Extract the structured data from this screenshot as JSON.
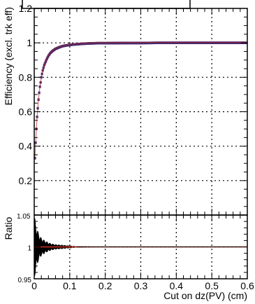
{
  "chart_data": [
    {
      "type": "scatter",
      "panel": "main",
      "ylabel": "Efficiency (excl. trk eff)",
      "xlim": [
        0,
        0.6
      ],
      "ylim": [
        0,
        1.2
      ],
      "grid": true,
      "x_tick_labels": [],
      "y_ticks": [
        0.2,
        0.4,
        0.6,
        0.8,
        1.0,
        1.2
      ],
      "y_tick_labels": [
        "0.2",
        "0.4",
        "0.6",
        "0.8",
        "1",
        "1.2"
      ],
      "series": [
        {
          "color": "#4a2a6e",
          "x": [
            0.002,
            0.004,
            0.006,
            0.008,
            0.01,
            0.012,
            0.014,
            0.016,
            0.018,
            0.02,
            0.022,
            0.024,
            0.026,
            0.028,
            0.03,
            0.035,
            0.04,
            0.045,
            0.05,
            0.055,
            0.06,
            0.07,
            0.08,
            0.09,
            0.1,
            0.12,
            0.14,
            0.16,
            0.18,
            0.2,
            0.25,
            0.3,
            0.35,
            0.4,
            0.45,
            0.5,
            0.55,
            0.6
          ],
          "y": [
            0.33,
            0.42,
            0.5,
            0.57,
            0.62,
            0.67,
            0.71,
            0.745,
            0.77,
            0.8,
            0.82,
            0.84,
            0.855,
            0.87,
            0.88,
            0.905,
            0.925,
            0.94,
            0.95,
            0.958,
            0.965,
            0.974,
            0.981,
            0.985,
            0.988,
            0.992,
            0.995,
            0.997,
            0.998,
            0.998,
            0.999,
            0.999,
            1.0,
            1.0,
            1.0,
            1.0,
            1.0,
            1.0
          ]
        }
      ]
    },
    {
      "type": "line",
      "panel": "ratio",
      "xlabel": "Cut on dz(PV) (cm)",
      "ylabel": "Ratio",
      "xlim": [
        0,
        0.6
      ],
      "ylim": [
        0.95,
        1.05
      ],
      "grid": true,
      "x_ticks": [
        0,
        0.1,
        0.2,
        0.3,
        0.4,
        0.5,
        0.6
      ],
      "x_tick_labels": [
        "0",
        "0.1",
        "0.2",
        "0.3",
        "0.4",
        "0.5",
        "0.6"
      ],
      "y_tick_labels": [
        "0.95",
        "1",
        "1.05"
      ],
      "reference_line": {
        "y": 1.0,
        "color": "#d03020"
      },
      "series": [
        {
          "color": "#000000",
          "x": [
            0.002,
            0.005,
            0.01,
            0.015,
            0.02,
            0.03,
            0.04,
            0.05,
            0.06,
            0.08,
            0.1,
            0.12,
            0.15,
            0.2,
            0.3,
            0.4,
            0.5,
            0.6
          ],
          "y_low": [
            0.955,
            0.965,
            0.975,
            0.982,
            0.986,
            0.99,
            0.993,
            0.995,
            0.996,
            0.997,
            0.998,
            0.999,
            0.9993,
            0.9995,
            0.9997,
            0.9998,
            0.9998,
            0.9998
          ],
          "y_high": [
            1.045,
            1.035,
            1.025,
            1.018,
            1.014,
            1.01,
            1.007,
            1.005,
            1.004,
            1.003,
            1.002,
            1.001,
            1.0007,
            1.0005,
            1.0003,
            1.0002,
            1.0002,
            1.0002
          ]
        }
      ]
    }
  ]
}
